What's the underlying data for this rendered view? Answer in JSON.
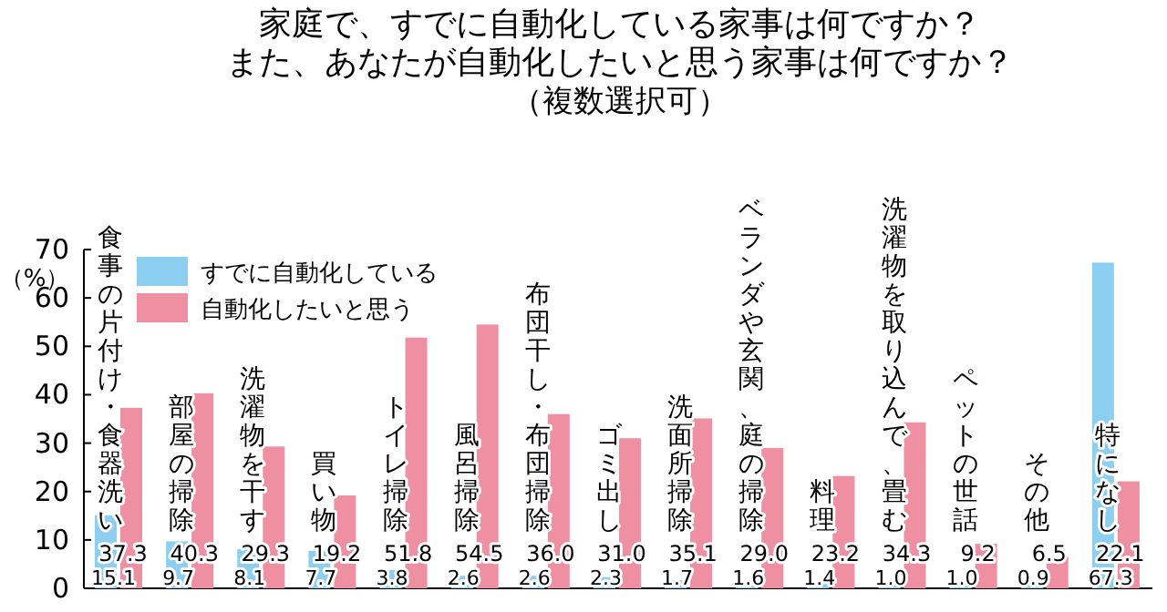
{
  "chart_data": {
    "type": "bar",
    "title": "家庭で、すでに自動化している家事は何ですか？",
    "subtitle": "また、あなたが自動化したいと思う家事は何ですか？",
    "annotations": [
      "（複数選択可）"
    ],
    "ylabel": "（%）",
    "categories": [
      "食事の片付け・食器洗い",
      "部屋の掃除",
      "洗濯物を干す",
      "買い物",
      "トイレ掃除",
      "風呂掃除",
      "布団干し・布団掃除",
      "ゴミ出し",
      "洗面所掃除",
      "ベランダや玄関、庭の掃除",
      "料理",
      "洗濯物を取り込んで、畳む",
      "ペットの世話",
      "その他",
      "特になし"
    ],
    "series": [
      {
        "name": "すでに自動化している",
        "color": "#8ccff0",
        "values": [
          15.1,
          9.7,
          8.1,
          7.7,
          3.8,
          2.6,
          2.6,
          2.3,
          1.7,
          1.6,
          1.4,
          1.0,
          1.0,
          0.9,
          67.3
        ],
        "value_labels": [
          "15.1",
          "9.7",
          "8.1",
          "7.7",
          "3.8",
          "2.6",
          "2.6",
          "2.3",
          "1.7",
          "1.6",
          "1.4",
          "1.0",
          "1.0",
          "0.9",
          "67.3"
        ]
      },
      {
        "name": "自動化したいと思う",
        "color": "#ef8fa2",
        "values": [
          37.3,
          40.3,
          29.3,
          19.2,
          51.8,
          54.5,
          36.0,
          31.0,
          35.1,
          29.0,
          23.2,
          34.3,
          9.2,
          6.5,
          22.1
        ],
        "value_labels": [
          "37.3",
          "40.3",
          "29.3",
          "19.2",
          "51.8",
          "54.5",
          "36.0",
          "31.0",
          "35.1",
          "29.0",
          "23.2",
          "34.3",
          "9.2",
          "6.5",
          "22.1"
        ]
      }
    ],
    "ylim": [
      0,
      70
    ],
    "yticks": [
      0,
      10,
      20,
      30,
      40,
      50,
      60,
      70
    ],
    "grid": false,
    "legend": "top left"
  }
}
